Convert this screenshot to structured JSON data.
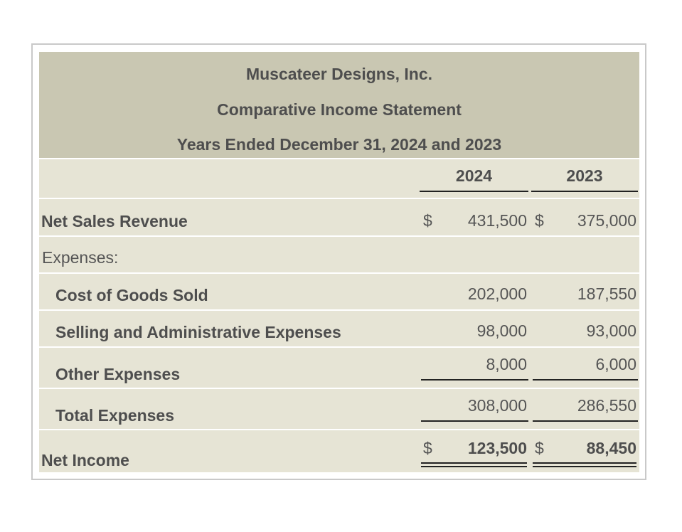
{
  "statement": {
    "company": "Muscateer Designs, Inc.",
    "title": "Comparative Income Statement",
    "period": "Years Ended December 31, 2024 and 2023",
    "columns": [
      "2024",
      "2023"
    ],
    "currency_symbol": "$",
    "rows": {
      "net_sales": {
        "label": "Net Sales Revenue",
        "y2024": "431,500",
        "y2023": "375,000"
      },
      "expenses_header": {
        "label": "Expenses:"
      },
      "cogs": {
        "label": "Cost of Goods Sold",
        "y2024": "202,000",
        "y2023": "187,550"
      },
      "sga": {
        "label": "Selling and Administrative Expenses",
        "y2024": "98,000",
        "y2023": "93,000"
      },
      "other": {
        "label": "Other Expenses",
        "y2024": "8,000",
        "y2023": "6,000"
      },
      "total_expenses": {
        "label": "Total Expenses",
        "y2024": "308,000",
        "y2023": "286,550"
      },
      "net_income": {
        "label": "Net Income",
        "y2024": "123,500",
        "y2023": "88,450"
      }
    }
  }
}
